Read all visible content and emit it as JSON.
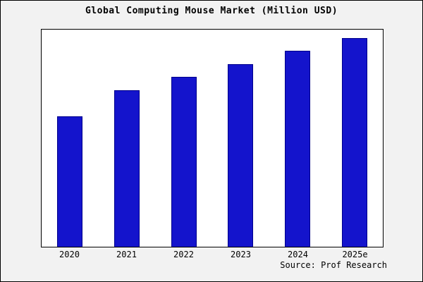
{
  "title": "Global Computing Mouse Market (Million USD)",
  "source": "Source: Prof Research",
  "colors": {
    "bar_fill": "#1414cc",
    "bar_border": "#00008b",
    "background": "#f2f2f2",
    "plot_background": "#ffffff",
    "frame": "#000000"
  },
  "chart_data": {
    "type": "bar",
    "categories": [
      "2020",
      "2021",
      "2022",
      "2023",
      "2024",
      "2025e"
    ],
    "values": [
      625,
      750,
      815,
      875,
      940,
      1000
    ],
    "title": "Global Computing Mouse Market (Million USD)",
    "xlabel": "",
    "ylabel": "",
    "ylim": [
      0,
      1040
    ],
    "grid": false,
    "legend": false,
    "annotations": [
      "Source: Prof Research"
    ]
  }
}
